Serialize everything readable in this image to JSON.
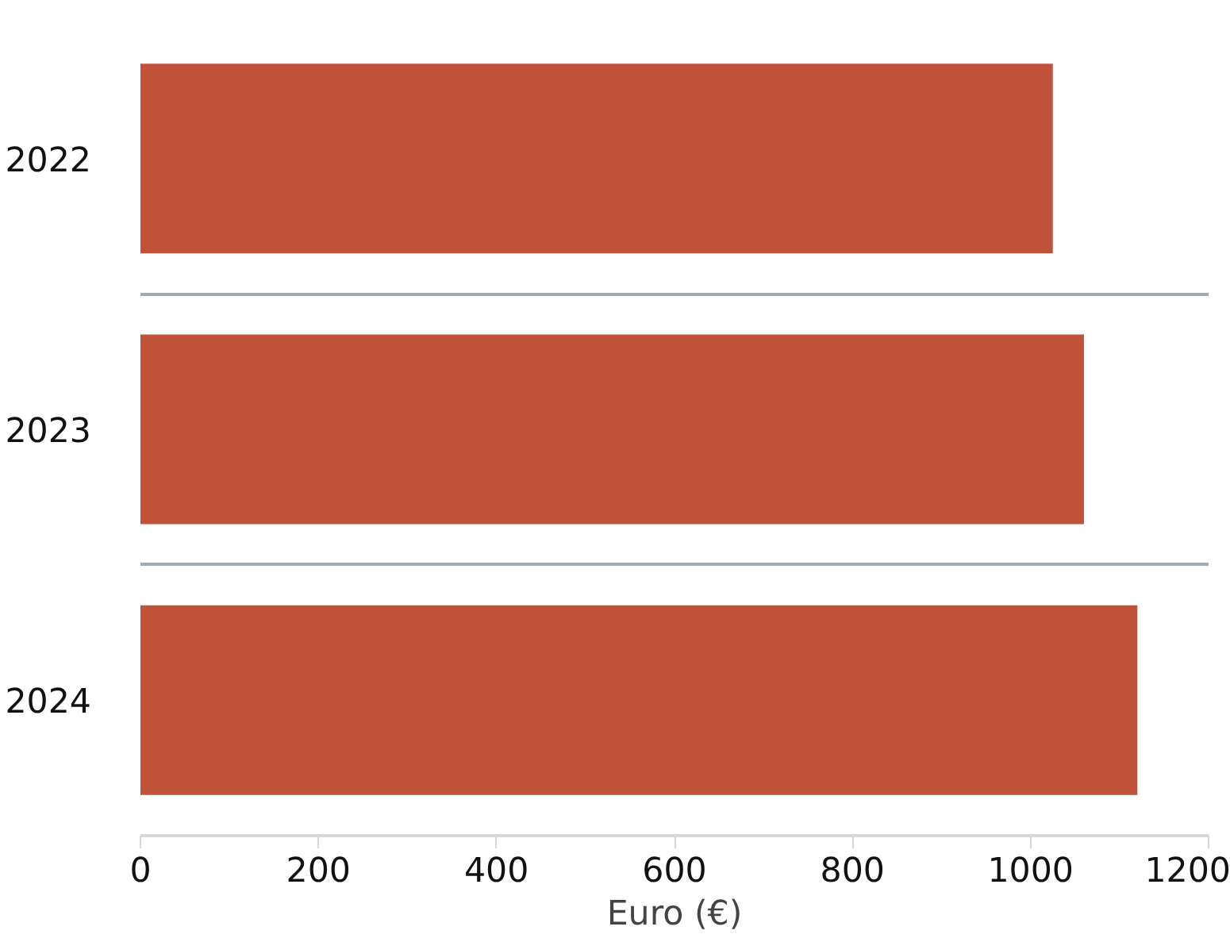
{
  "chart_data": {
    "type": "bar",
    "orientation": "horizontal",
    "xlabel": "Euro (€)",
    "categories": [
      "2022",
      "2023",
      "2024"
    ],
    "values": [
      1025,
      1060,
      1120
    ],
    "color": "#c1523a",
    "xlim": [
      0,
      1200
    ],
    "xticks": [
      0,
      200,
      400,
      600,
      800,
      1000,
      1200
    ],
    "grid": "y"
  }
}
